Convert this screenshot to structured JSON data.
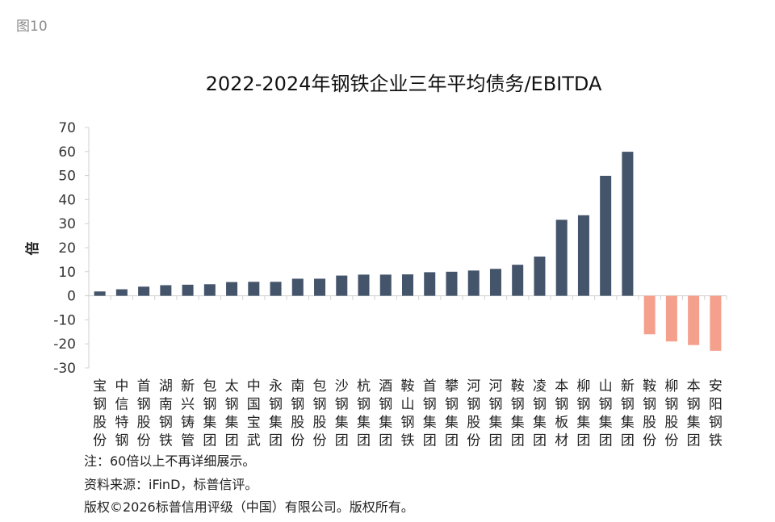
{
  "figure_label": "图10",
  "chart_data": {
    "type": "bar",
    "title": "2022-2024年钢铁企业三年平均债务/EBITDA",
    "ylabel": "倍",
    "xlabel": "",
    "ylim": [
      -30,
      70
    ],
    "yticks": [
      70,
      60,
      50,
      40,
      30,
      20,
      10,
      0,
      -10,
      -20,
      -30
    ],
    "grid": false,
    "categories": [
      "宝钢股份",
      "中信特钢",
      "首钢股份",
      "湖南钢铁",
      "新兴铸管",
      "包钢集团",
      "太钢集团",
      "中国宝武",
      "永钢集团",
      "南钢股份",
      "包钢股份",
      "沙钢集团",
      "杭钢集团",
      "酒钢集团",
      "鞍山钢铁",
      "首钢集团",
      "攀钢集团",
      "河钢股份",
      "河钢集团",
      "鞍钢集团",
      "凌钢集团",
      "本钢板材",
      "柳钢集团",
      "山钢集团",
      "新钢集团",
      "鞍钢股份",
      "柳钢股份",
      "本钢集团",
      "安阳钢铁"
    ],
    "values": [
      1.8,
      2.7,
      3.8,
      4.4,
      4.6,
      4.8,
      5.7,
      5.8,
      5.8,
      7.1,
      7.1,
      8.4,
      8.8,
      8.8,
      8.9,
      9.8,
      10.0,
      10.5,
      11.2,
      12.9,
      16.3,
      31.6,
      33.5,
      49.9,
      59.9,
      -16.0,
      -19.0,
      -20.5,
      -22.9
    ],
    "colors": {
      "positive": "#44546a",
      "negative": "#f4a08c",
      "axis": "#d0d0d0"
    }
  },
  "notes": [
    "注：60倍以上不再详细展示。",
    "资料来源：iFinD，标普信评。",
    "版权©2026标普信用评级（中国）有限公司。版权所有。"
  ]
}
